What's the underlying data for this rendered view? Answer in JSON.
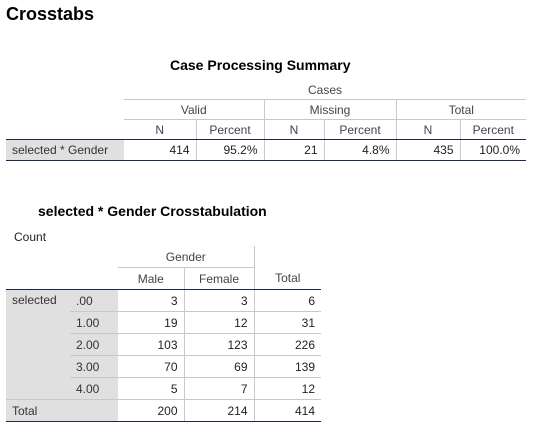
{
  "page_title": "Crosstabs",
  "summary": {
    "title": "Case Processing Summary",
    "cases_header": "Cases",
    "group_headers": [
      "Valid",
      "Missing",
      "Total"
    ],
    "col_headers": [
      "N",
      "Percent",
      "N",
      "Percent",
      "N",
      "Percent"
    ],
    "row_label": "selected * Gender",
    "row_values": [
      "414",
      "95.2%",
      "21",
      "4.8%",
      "435",
      "100.0%"
    ]
  },
  "crosstab": {
    "title": "selected * Gender Crosstabulation",
    "count_label": "Count",
    "gender_header": "Gender",
    "col_headers": [
      "Male",
      "Female",
      "Total"
    ],
    "row_var": "selected",
    "rows": [
      {
        "label": ".00",
        "values": [
          "3",
          "3",
          "6"
        ]
      },
      {
        "label": "1.00",
        "values": [
          "19",
          "12",
          "31"
        ]
      },
      {
        "label": "2.00",
        "values": [
          "103",
          "123",
          "226"
        ]
      },
      {
        "label": "3.00",
        "values": [
          "70",
          "69",
          "139"
        ]
      },
      {
        "label": "4.00",
        "values": [
          "5",
          "7",
          "12"
        ]
      }
    ],
    "total_label": "Total",
    "total_values": [
      "200",
      "214",
      "414"
    ]
  }
}
